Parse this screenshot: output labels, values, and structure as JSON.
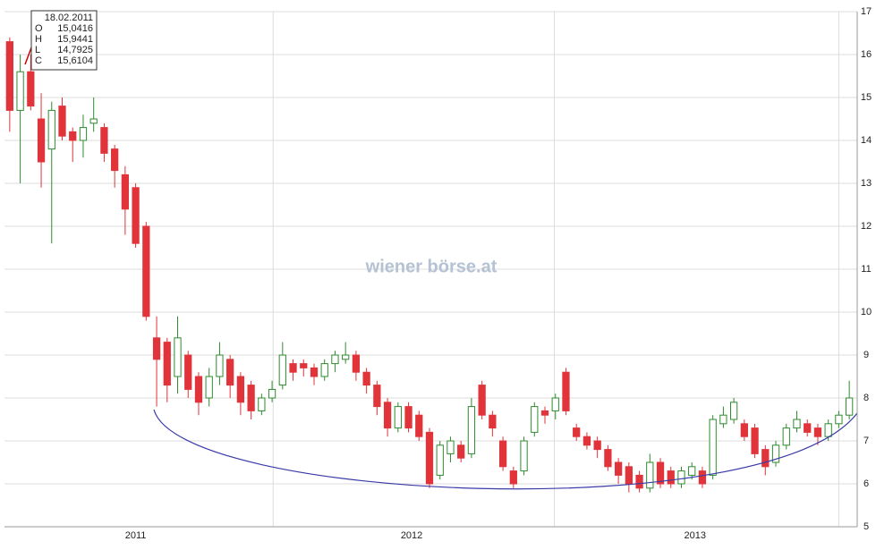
{
  "chart_data": {
    "type": "candlestick",
    "watermark": "wiener börse.at",
    "tooltip": {
      "date": "18.02.2011",
      "rows": [
        {
          "key": "O",
          "value": "15,0416"
        },
        {
          "key": "H",
          "value": "15,9441"
        },
        {
          "key": "L",
          "value": "14,7925"
        },
        {
          "key": "C",
          "value": "15,6104"
        }
      ]
    },
    "open": [
      16.3,
      14.7,
      15.6,
      14.5,
      13.8,
      14.8,
      14.2,
      14.0,
      14.4,
      14.3,
      13.8,
      13.2,
      12.9,
      12.0,
      9.4,
      9.3,
      8.5,
      9.0,
      8.5,
      8.0,
      8.5,
      8.9,
      8.5,
      8.3,
      7.7,
      8.0,
      8.3,
      8.8,
      8.8,
      8.7,
      8.5,
      8.8,
      8.9,
      9.0,
      8.6,
      8.3,
      7.9,
      7.3,
      7.8,
      7.6,
      7.2,
      6.2,
      6.7,
      6.9,
      6.7,
      8.3,
      7.6,
      7.0,
      6.3,
      6.3,
      7.2,
      7.7,
      7.7,
      8.6,
      7.3,
      7.1,
      7.0,
      6.8,
      6.5,
      6.4,
      6.2,
      5.9,
      6.5,
      6.3,
      6.0,
      6.2,
      6.3,
      6.2,
      7.4,
      7.5,
      7.4,
      7.3,
      6.8,
      6.5,
      6.9,
      7.3,
      7.4,
      7.3,
      7.1,
      7.4,
      7.6
    ],
    "high": [
      16.4,
      16.0,
      16.0,
      15.1,
      14.9,
      15.0,
      14.3,
      14.6,
      15.0,
      14.4,
      13.9,
      13.4,
      13.0,
      12.1,
      9.9,
      9.4,
      9.9,
      9.1,
      8.6,
      8.7,
      9.3,
      9.0,
      8.6,
      8.4,
      8.1,
      8.4,
      9.3,
      8.9,
      8.9,
      8.8,
      8.9,
      9.1,
      9.3,
      9.1,
      8.7,
      8.4,
      8.0,
      7.9,
      7.9,
      7.7,
      7.3,
      7.0,
      7.1,
      7.0,
      8.0,
      8.4,
      7.7,
      7.1,
      6.4,
      7.1,
      7.9,
      7.8,
      8.1,
      8.7,
      7.4,
      7.2,
      7.1,
      6.9,
      6.6,
      6.5,
      6.3,
      6.7,
      6.6,
      6.4,
      6.4,
      6.5,
      6.4,
      7.6,
      7.8,
      8.0,
      7.5,
      7.4,
      6.9,
      7.0,
      7.4,
      7.7,
      7.5,
      7.4,
      7.5,
      7.7,
      8.4
    ],
    "low": [
      14.2,
      13.0,
      14.7,
      12.9,
      11.6,
      14.0,
      13.5,
      13.6,
      14.2,
      13.5,
      12.9,
      11.8,
      11.5,
      9.8,
      7.8,
      7.9,
      8.1,
      8.0,
      7.6,
      7.8,
      8.3,
      8.0,
      7.6,
      7.5,
      7.6,
      7.9,
      8.2,
      8.4,
      8.5,
      8.3,
      8.4,
      8.6,
      8.8,
      8.4,
      8.1,
      7.6,
      7.1,
      7.2,
      7.2,
      7.0,
      5.9,
      6.1,
      6.5,
      6.5,
      6.6,
      7.5,
      7.1,
      6.3,
      5.9,
      6.2,
      7.1,
      7.4,
      7.5,
      7.6,
      7.0,
      6.8,
      6.6,
      6.3,
      6.0,
      5.8,
      5.8,
      5.8,
      5.9,
      5.9,
      5.9,
      6.1,
      5.9,
      6.1,
      7.3,
      7.4,
      7.0,
      6.6,
      6.2,
      6.4,
      6.8,
      7.2,
      7.1,
      6.9,
      7.0,
      7.3,
      7.5
    ],
    "close": [
      14.7,
      15.6,
      14.8,
      13.5,
      14.7,
      14.1,
      14.0,
      14.3,
      14.5,
      13.7,
      13.3,
      12.4,
      11.6,
      9.9,
      8.9,
      8.3,
      9.4,
      8.2,
      7.9,
      8.5,
      9.0,
      8.3,
      7.9,
      7.7,
      8.0,
      8.2,
      9.0,
      8.6,
      8.7,
      8.5,
      8.8,
      9.0,
      9.0,
      8.6,
      8.3,
      7.8,
      7.3,
      7.8,
      7.3,
      7.1,
      6.0,
      6.9,
      7.0,
      6.6,
      7.8,
      7.6,
      7.3,
      6.4,
      6.0,
      7.0,
      7.8,
      7.6,
      8.0,
      7.7,
      7.1,
      6.9,
      6.8,
      6.4,
      6.2,
      6.0,
      5.9,
      6.5,
      6.0,
      6.0,
      6.3,
      6.4,
      6.0,
      7.5,
      7.6,
      7.9,
      7.1,
      6.7,
      6.4,
      6.9,
      7.3,
      7.5,
      7.2,
      7.1,
      7.4,
      7.6,
      8.0
    ],
    "up_color": "#2e8b2e",
    "down_color": "#e0343a",
    "xlim": [
      0,
      81
    ],
    "xticks": [
      {
        "value": 12.5,
        "label": "2011"
      },
      {
        "value": 38.8,
        "label": "2012"
      },
      {
        "value": 65.8,
        "label": "2013"
      }
    ],
    "xgrid": [
      25.6,
      52.4,
      79.5
    ],
    "ylim": [
      5,
      17
    ],
    "yticks": [
      5,
      6,
      7,
      8,
      9,
      10,
      11,
      12,
      13,
      14,
      15,
      16,
      17
    ],
    "grid": true
  }
}
